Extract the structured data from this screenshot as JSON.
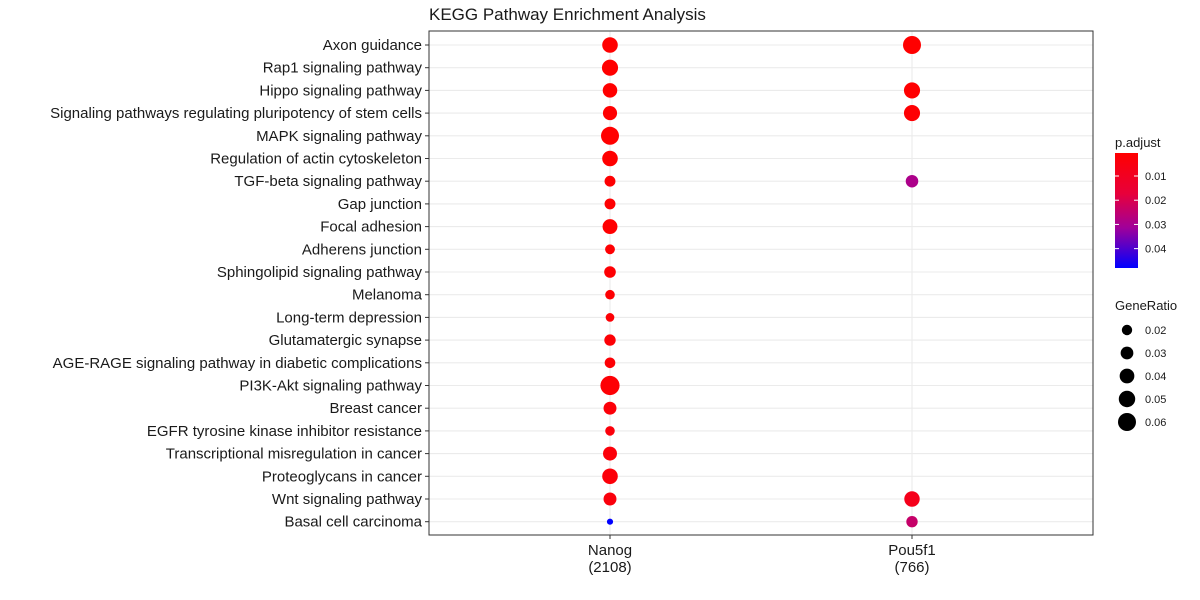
{
  "chart_data": {
    "type": "scatter",
    "title": "KEGG Pathway Enrichment Analysis",
    "xlabel": "",
    "ylabel": "",
    "categories_x": [
      {
        "name": "Nanog",
        "count": "(2108)"
      },
      {
        "name": "Pou5f1",
        "count": "(766)"
      }
    ],
    "categories_y": [
      "Axon guidance",
      "Rap1 signaling pathway",
      "Hippo signaling pathway",
      "Signaling pathways regulating pluripotency of stem cells",
      "MAPK signaling pathway",
      "Regulation of actin cytoskeleton",
      "TGF-beta signaling pathway",
      "Gap junction",
      "Focal adhesion",
      "Adherens junction",
      "Sphingolipid signaling pathway",
      "Melanoma",
      "Long-term depression",
      "Glutamatergic synapse",
      "AGE-RAGE signaling pathway in diabetic complications",
      "PI3K-Akt signaling pathway",
      "Breast cancer",
      "EGFR tyrosine kinase inhibitor resistance",
      "Transcriptional misregulation in cancer",
      "Proteoglycans in cancer",
      "Wnt signaling pathway",
      "Basal cell carcinoma"
    ],
    "points": [
      {
        "x": "Nanog",
        "y": "Axon guidance",
        "gene_ratio": 0.045,
        "p_adjust": 0.0005
      },
      {
        "x": "Nanog",
        "y": "Rap1 signaling pathway",
        "gene_ratio": 0.048,
        "p_adjust": 0.0005
      },
      {
        "x": "Nanog",
        "y": "Hippo signaling pathway",
        "gene_ratio": 0.039,
        "p_adjust": 0.0005
      },
      {
        "x": "Nanog",
        "y": "Signaling pathways regulating pluripotency of stem cells",
        "gene_ratio": 0.037,
        "p_adjust": 0.0008
      },
      {
        "x": "Nanog",
        "y": "MAPK signaling pathway",
        "gene_ratio": 0.06,
        "p_adjust": 0.0005
      },
      {
        "x": "Nanog",
        "y": "Regulation of actin cytoskeleton",
        "gene_ratio": 0.045,
        "p_adjust": 0.0005
      },
      {
        "x": "Nanog",
        "y": "TGF-beta signaling pathway",
        "gene_ratio": 0.022,
        "p_adjust": 0.001
      },
      {
        "x": "Nanog",
        "y": "Gap junction",
        "gene_ratio": 0.022,
        "p_adjust": 0.001
      },
      {
        "x": "Nanog",
        "y": "Focal adhesion",
        "gene_ratio": 0.041,
        "p_adjust": 0.0008
      },
      {
        "x": "Nanog",
        "y": "Adherens junction",
        "gene_ratio": 0.018,
        "p_adjust": 0.0015
      },
      {
        "x": "Nanog",
        "y": "Sphingolipid signaling pathway",
        "gene_ratio": 0.025,
        "p_adjust": 0.0015
      },
      {
        "x": "Nanog",
        "y": "Melanoma",
        "gene_ratio": 0.017,
        "p_adjust": 0.0015
      },
      {
        "x": "Nanog",
        "y": "Long-term depression",
        "gene_ratio": 0.014,
        "p_adjust": 0.002
      },
      {
        "x": "Nanog",
        "y": "Glutamatergic synapse",
        "gene_ratio": 0.024,
        "p_adjust": 0.002
      },
      {
        "x": "Nanog",
        "y": "AGE-RAGE signaling pathway in diabetic complications",
        "gene_ratio": 0.021,
        "p_adjust": 0.002
      },
      {
        "x": "Nanog",
        "y": "PI3K-Akt signaling pathway",
        "gene_ratio": 0.068,
        "p_adjust": 0.002
      },
      {
        "x": "Nanog",
        "y": "Breast cancer",
        "gene_ratio": 0.031,
        "p_adjust": 0.003
      },
      {
        "x": "Nanog",
        "y": "EGFR tyrosine kinase inhibitor resistance",
        "gene_ratio": 0.017,
        "p_adjust": 0.0035
      },
      {
        "x": "Nanog",
        "y": "Transcriptional misregulation in cancer",
        "gene_ratio": 0.036,
        "p_adjust": 0.003
      },
      {
        "x": "Nanog",
        "y": "Proteoglycans in cancer",
        "gene_ratio": 0.045,
        "p_adjust": 0.003
      },
      {
        "x": "Nanog",
        "y": "Wnt signaling pathway",
        "gene_ratio": 0.031,
        "p_adjust": 0.004
      },
      {
        "x": "Nanog",
        "y": "Basal cell carcinoma",
        "gene_ratio": 0.007,
        "p_adjust": 0.048
      },
      {
        "x": "Pou5f1",
        "y": "Axon guidance",
        "gene_ratio": 0.06,
        "p_adjust": 0.0005
      },
      {
        "x": "Pou5f1",
        "y": "Hippo signaling pathway",
        "gene_ratio": 0.048,
        "p_adjust": 0.0008
      },
      {
        "x": "Pou5f1",
        "y": "Signaling pathways regulating pluripotency of stem cells",
        "gene_ratio": 0.048,
        "p_adjust": 0.0015
      },
      {
        "x": "Pou5f1",
        "y": "TGF-beta signaling pathway",
        "gene_ratio": 0.029,
        "p_adjust": 0.029
      },
      {
        "x": "Pou5f1",
        "y": "Wnt signaling pathway",
        "gene_ratio": 0.044,
        "p_adjust": 0.008
      },
      {
        "x": "Pou5f1",
        "y": "Basal cell carcinoma",
        "gene_ratio": 0.024,
        "p_adjust": 0.024
      }
    ],
    "color_scale": {
      "name": "p.adjust",
      "low_color": "#ff0000",
      "high_color": "#0000ff",
      "min": 0.0005,
      "max": 0.048
    },
    "legend": {
      "color_title": "p.adjust",
      "color_ticks": [
        "0.01",
        "0.02",
        "0.03",
        "0.04"
      ],
      "size_title": "GeneRatio",
      "size_ticks": [
        "0.02",
        "0.03",
        "0.04",
        "0.05",
        "0.06"
      ],
      "placement": "right"
    },
    "grid": true
  }
}
